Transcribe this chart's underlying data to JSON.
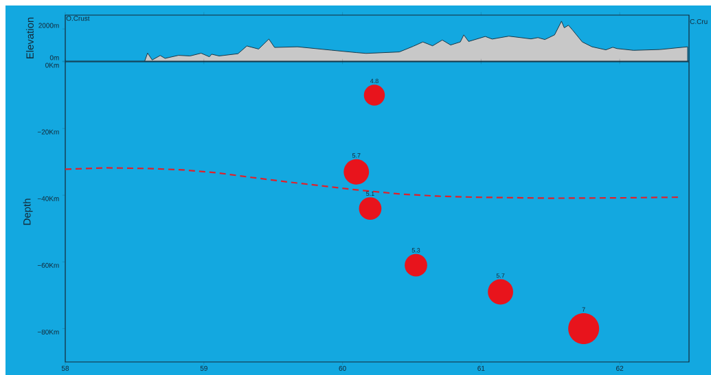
{
  "chart_data": [
    {
      "type": "area",
      "ylabel": "Elevation",
      "annotations": [
        "O.Crust",
        "C.Cru"
      ],
      "xlim": [
        58,
        62.5
      ],
      "xticks": [
        58,
        59,
        60,
        61,
        62
      ],
      "ylim": [
        0,
        2860
      ],
      "yticks": [
        {
          "value": 0,
          "label": "0m"
        },
        {
          "value": 2000,
          "label": "2000m"
        }
      ],
      "tick_labels": "y",
      "series": [
        {
          "color": "#c8c8c8",
          "x": [
            58.573,
            58.594,
            58.627,
            58.685,
            58.72,
            58.817,
            58.9,
            58.98,
            59.04,
            59.056,
            59.11,
            59.246,
            59.31,
            59.395,
            59.469,
            59.51,
            59.675,
            59.92,
            60.1,
            60.17,
            60.41,
            60.51,
            60.58,
            60.65,
            60.72,
            60.78,
            60.85,
            60.875,
            60.91,
            61.03,
            61.08,
            61.2,
            61.36,
            61.41,
            61.46,
            61.53,
            61.58,
            61.6,
            61.63,
            61.66,
            61.73,
            61.8,
            61.9,
            61.95,
            61.98,
            62.1,
            62.29,
            62.49
          ],
          "values": [
            0,
            500,
            70,
            350,
            170,
            360,
            320,
            490,
            270,
            430,
            320,
            460,
            940,
            750,
            1370,
            850,
            890,
            680,
            530,
            480,
            570,
            920,
            1190,
            950,
            1310,
            1000,
            1190,
            1630,
            1220,
            1530,
            1370,
            1550,
            1380,
            1460,
            1340,
            1630,
            2480,
            2070,
            2230,
            1930,
            1190,
            890,
            700,
            860,
            780,
            670,
            720,
            890
          ]
        }
      ]
    },
    {
      "type": "bubble",
      "ylabel": "Depth",
      "xlim": [
        58,
        62.5
      ],
      "xticks": [
        58,
        59,
        60,
        61,
        62
      ],
      "ylim": [
        -90,
        0
      ],
      "yticks": [
        {
          "value": 0,
          "label": "0Km"
        },
        {
          "value": -20,
          "label": "−20Km"
        },
        {
          "value": -40,
          "label": "−40Km"
        },
        {
          "value": -60,
          "label": "−60Km"
        },
        {
          "value": -80,
          "label": "−80Km"
        }
      ],
      "annotations": [
        {
          "text": "4.8",
          "x": 60.23,
          "y": -10
        },
        {
          "text": "5.7",
          "x": 60.1,
          "y": -33
        },
        {
          "text": "5.1",
          "x": 60.2,
          "y": -44
        },
        {
          "text": "5.3",
          "x": 60.53,
          "y": -61
        },
        {
          "text": "5.7",
          "x": 61.14,
          "y": -69
        },
        {
          "text": "7",
          "x": 61.74,
          "y": -80
        }
      ],
      "series": [
        {
          "type": "bubble",
          "color": "#e8141c",
          "x": [
            60.23,
            60.1,
            60.2,
            60.53,
            61.14,
            61.74
          ],
          "values": [
            -10,
            -33,
            -44,
            -61,
            -69,
            -80
          ],
          "sizes": [
            0.46,
            0.67,
            0.53,
            0.53,
            0.67,
            1
          ]
        },
        {
          "type": "line",
          "color": "#e0202a",
          "line_style": "dashed",
          "x": [
            58,
            58.3,
            58.6,
            58.85,
            59.1,
            59.35,
            59.6,
            59.85,
            60.1,
            60.43,
            60.7,
            60.96,
            61.5,
            62,
            62.42
          ],
          "values": [
            -32.2,
            -31.8,
            -32,
            -32.4,
            -33.3,
            -34.7,
            -36,
            -37.2,
            -38.4,
            -39.7,
            -40.3,
            -40.6,
            -40.9,
            -40.8,
            -40.6
          ]
        }
      ]
    }
  ]
}
